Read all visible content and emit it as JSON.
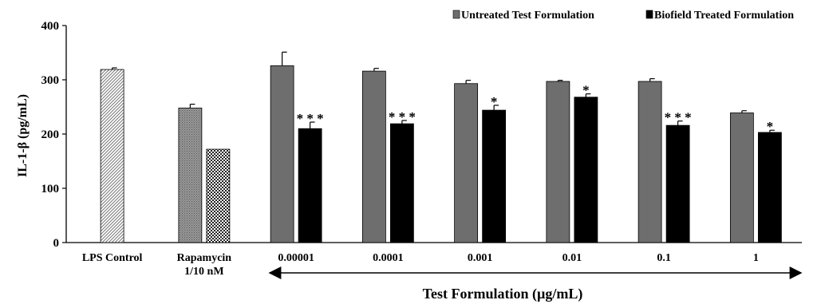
{
  "chart_data": {
    "type": "bar",
    "ylabel": "IL-1-β (pg/mL)",
    "xlabel": "Test Formulation (µg/mL)",
    "ylim": [
      0,
      400
    ],
    "yticks": [
      "0",
      "100",
      "200",
      "300",
      "400"
    ],
    "grid": false,
    "legend_position": "top-right",
    "categories": [
      "LPS Control",
      "Rapamycin|1/10 nM",
      "0.00001",
      "0.0001",
      "0.001",
      "0.01",
      "0.1",
      "1"
    ],
    "category_lines": [
      [
        "LPS Control"
      ],
      [
        "Rapamycin",
        "1/10 nM"
      ],
      [
        "0.00001"
      ],
      [
        "0.0001"
      ],
      [
        "0.001"
      ],
      [
        "0.01"
      ],
      [
        "0.1"
      ],
      [
        "1"
      ]
    ],
    "series": [
      {
        "name": "Untreated Test Formulation",
        "color": "#6e6e6e",
        "values": [
          null,
          null,
          326,
          316,
          293,
          297,
          297,
          239
        ],
        "errors": [
          null,
          null,
          25,
          5,
          6,
          2,
          5,
          4
        ]
      },
      {
        "name": "Biofield Treated Formulation",
        "color": "#000000",
        "values": [
          null,
          null,
          210,
          219,
          244,
          268,
          216,
          203
        ],
        "errors": [
          null,
          null,
          12,
          6,
          9,
          6,
          8,
          4
        ],
        "significance": [
          null,
          null,
          "***",
          "***",
          "*",
          "*",
          "***",
          "*"
        ]
      }
    ],
    "controls": [
      {
        "category": "LPS Control",
        "value": 319,
        "error": 3,
        "pattern": "diagonal-hatch"
      },
      {
        "category": "Rapamycin|1/10 nM",
        "value": 248,
        "error": 7,
        "pattern": "dotted-gray"
      },
      {
        "category": "Rapamycin|1/10 nM",
        "value": 172,
        "error": 0,
        "pattern": "checker"
      }
    ]
  }
}
